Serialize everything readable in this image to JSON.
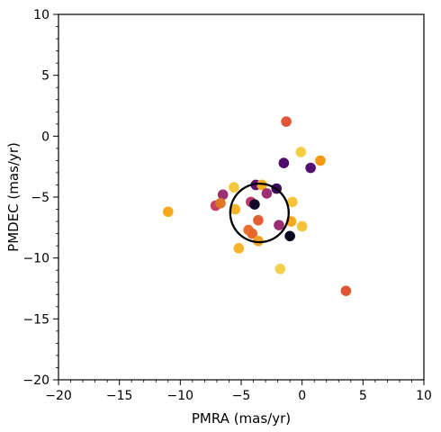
{
  "chart_data": {
    "type": "scatter",
    "title": "",
    "xlabel": "PMRA (mas/yr)",
    "ylabel": "PMDEC (mas/yr)",
    "xlim": [
      -20,
      10
    ],
    "ylim": [
      -20,
      10
    ],
    "xticks": [
      -20,
      -15,
      -10,
      -5,
      0,
      5,
      10
    ],
    "yticks": [
      -20,
      -15,
      -10,
      -5,
      0,
      5,
      10
    ],
    "xtick_labels": [
      "−20",
      "−15",
      "−10",
      "−5",
      "0",
      "5",
      "10"
    ],
    "ytick_labels": [
      "−20",
      "−15",
      "−10",
      "−5",
      "0",
      "5",
      "10"
    ],
    "grid": false,
    "points": [
      {
        "x": -1.3,
        "y": 1.2,
        "color": "#e0553a"
      },
      {
        "x": -0.1,
        "y": -1.3,
        "color": "#f6cd3d"
      },
      {
        "x": -1.5,
        "y": -2.2,
        "color": "#4f0d6b"
      },
      {
        "x": 1.5,
        "y": -2.0,
        "color": "#f39a12"
      },
      {
        "x": 0.7,
        "y": -2.6,
        "color": "#55106f"
      },
      {
        "x": -11.0,
        "y": -6.2,
        "color": "#f8a91a"
      },
      {
        "x": -5.6,
        "y": -4.2,
        "color": "#f5c73b"
      },
      {
        "x": -6.5,
        "y": -4.8,
        "color": "#9c2f70"
      },
      {
        "x": -7.1,
        "y": -5.7,
        "color": "#c54065"
      },
      {
        "x": -6.7,
        "y": -5.5,
        "color": "#e07427"
      },
      {
        "x": -5.5,
        "y": -6.0,
        "color": "#f6b22c"
      },
      {
        "x": -4.2,
        "y": -5.4,
        "color": "#b93a67"
      },
      {
        "x": -3.8,
        "y": -4.0,
        "color": "#5c126e"
      },
      {
        "x": -3.3,
        "y": -4.0,
        "color": "#f6ad1c"
      },
      {
        "x": -2.9,
        "y": -4.7,
        "color": "#9e2f72"
      },
      {
        "x": -2.1,
        "y": -4.3,
        "color": "#3a0a5f"
      },
      {
        "x": -0.8,
        "y": -5.4,
        "color": "#f5c23a"
      },
      {
        "x": -3.6,
        "y": -6.9,
        "color": "#e65d34"
      },
      {
        "x": -1.9,
        "y": -7.3,
        "color": "#9b2e72"
      },
      {
        "x": -0.9,
        "y": -7.0,
        "color": "#f6a51f"
      },
      {
        "x": 0.0,
        "y": -7.4,
        "color": "#f6c23e"
      },
      {
        "x": -4.4,
        "y": -7.7,
        "color": "#ec6f2d"
      },
      {
        "x": -4.1,
        "y": -8.0,
        "color": "#e6682d"
      },
      {
        "x": -3.6,
        "y": -8.6,
        "color": "#f6a227"
      },
      {
        "x": -1.0,
        "y": -8.2,
        "color": "#0d0621"
      },
      {
        "x": -5.2,
        "y": -9.2,
        "color": "#f6b32c"
      },
      {
        "x": -1.8,
        "y": -10.9,
        "color": "#f5d04f"
      },
      {
        "x": 3.6,
        "y": -12.7,
        "color": "#df5637"
      },
      {
        "x": -3.9,
        "y": -5.6,
        "color": "#120a2b"
      }
    ],
    "circle": {
      "center": [
        -3.5,
        -6.3
      ],
      "radius": 2.4,
      "color": "#000000"
    }
  }
}
